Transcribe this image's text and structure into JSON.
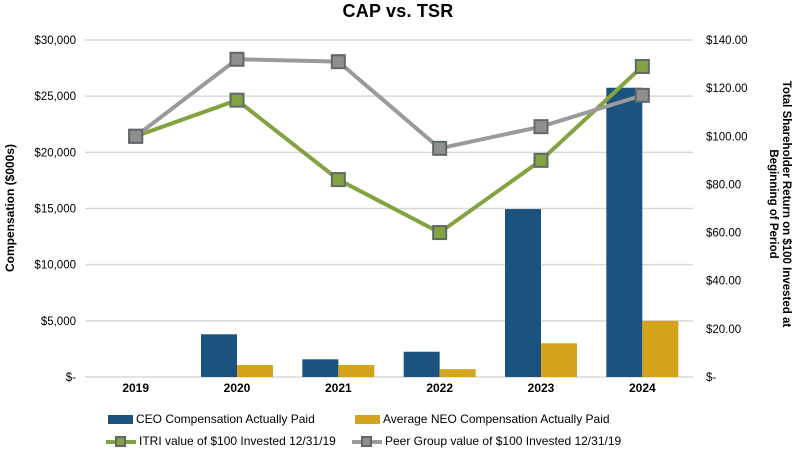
{
  "chart_data": {
    "type": "combo-bar-line",
    "title": "CAP vs. TSR",
    "categories": [
      "2019",
      "2020",
      "2021",
      "2022",
      "2023",
      "2024"
    ],
    "bar_series": [
      {
        "id": "ceo",
        "name": "CEO Compensation Actually Paid",
        "axis": "left",
        "color_key": "ceo_bar",
        "values": [
          null,
          3800,
          1575,
          2250,
          14950,
          25750
        ]
      },
      {
        "id": "neo",
        "name": "Average NEO Compensation Actually Paid",
        "axis": "left",
        "color_key": "neo_bar",
        "values": [
          null,
          1070,
          1070,
          700,
          3000,
          5000
        ]
      }
    ],
    "line_series": [
      {
        "id": "itri",
        "name": "ITRI value of $100 Invested 12/31/19",
        "axis": "right",
        "color_key": "itri_line",
        "marker_fill_key": "itri_line",
        "marker_stroke_key": "marker_stroke",
        "values": [
          100,
          115,
          82,
          60,
          90,
          129
        ]
      },
      {
        "id": "peer",
        "name": "Peer Group value of $100 Invested 12/31/19",
        "axis": "right",
        "color_key": "peer_line",
        "marker_fill_key": "peer_marker_fill",
        "marker_stroke_key": "marker_stroke",
        "values": [
          100,
          132,
          131,
          95,
          104,
          117
        ]
      }
    ],
    "left_axis": {
      "title": "Compensation ($000s)",
      "max": 30000,
      "tick_values": [
        30000,
        25000,
        20000,
        15000,
        10000,
        5000,
        0
      ],
      "tick_labels": [
        "$30,000",
        "$25,000",
        "$20,000",
        "$15,000",
        "$10,000",
        "$5,000",
        "$-"
      ]
    },
    "right_axis": {
      "title_line1": "Total Shareholder Return on $100 Invested at",
      "title_line2": "Beginning of Period",
      "max": 140,
      "tick_values": [
        140,
        120,
        100,
        80,
        60,
        40,
        20,
        0
      ],
      "tick_labels": [
        "$140.00",
        "$120.00",
        "$100.00",
        "$80.00",
        "$60.00",
        "$40.00",
        "$20.00",
        "$-"
      ]
    },
    "legend": [
      {
        "label": "CEO Compensation Actually Paid",
        "swatch": "bar"
      },
      {
        "label": "Average NEO Compensation Actually Paid",
        "swatch": "bar"
      },
      {
        "label": "ITRI value of $100 Invested 12/31/19",
        "swatch": "line"
      },
      {
        "label": "Peer Group value of $100 Invested 12/31/19",
        "swatch": "line"
      }
    ],
    "colors": {
      "ceo_bar": "#1B537E",
      "neo_bar": "#D5A41D",
      "itri_line": "#84A240",
      "peer_line": "#9A9A9A",
      "peer_marker_fill": "#8F8F8F",
      "marker_stroke": "#5F686C",
      "gridline": "#D9D9D9"
    },
    "layout": {
      "grid": true,
      "legend_position": "bottom"
    }
  }
}
